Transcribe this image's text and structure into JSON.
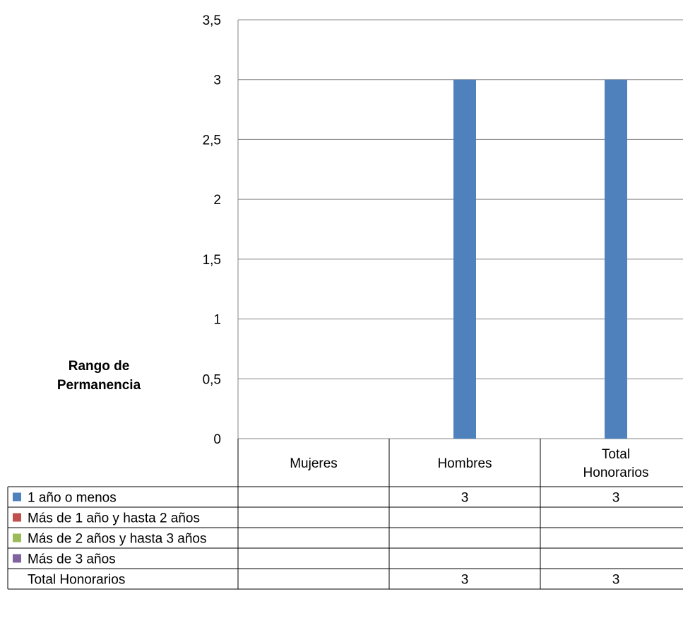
{
  "chart_data": {
    "type": "bar",
    "title": "",
    "ylabel": "Rango de Permanencia",
    "ylabel_lines": [
      "Rango de",
      "Permanencia"
    ],
    "ylim": [
      0,
      3.5
    ],
    "yticks": [
      "0",
      "0,5",
      "1",
      "1,5",
      "2",
      "2,5",
      "3",
      "3,5"
    ],
    "grid": true,
    "categories": [
      "Mujeres",
      "Hombres",
      "Total Honorarios"
    ],
    "category_lines": [
      [
        "Mujeres"
      ],
      [
        "Hombres"
      ],
      [
        "Total",
        "Honorarios"
      ]
    ],
    "series": [
      {
        "name": "1 año o menos",
        "color": "#4F81BD",
        "values": [
          null,
          3,
          3
        ],
        "labels": [
          "",
          "3",
          "3"
        ]
      },
      {
        "name": "Más de 1 año y hasta 2 años",
        "color": "#C0504D",
        "values": [
          null,
          null,
          null
        ],
        "labels": [
          "",
          "",
          ""
        ]
      },
      {
        "name": "Más de 2 años y hasta 3 años",
        "color": "#9BBB59",
        "values": [
          null,
          null,
          null
        ],
        "labels": [
          "",
          "",
          ""
        ]
      },
      {
        "name": "Más de 3 años",
        "color": "#8064A2",
        "values": [
          null,
          null,
          null
        ],
        "labels": [
          "",
          "",
          ""
        ]
      }
    ],
    "total_row": {
      "name": "Total Honorarios",
      "labels": [
        "",
        "3",
        "3"
      ]
    },
    "legend": "data-table"
  }
}
